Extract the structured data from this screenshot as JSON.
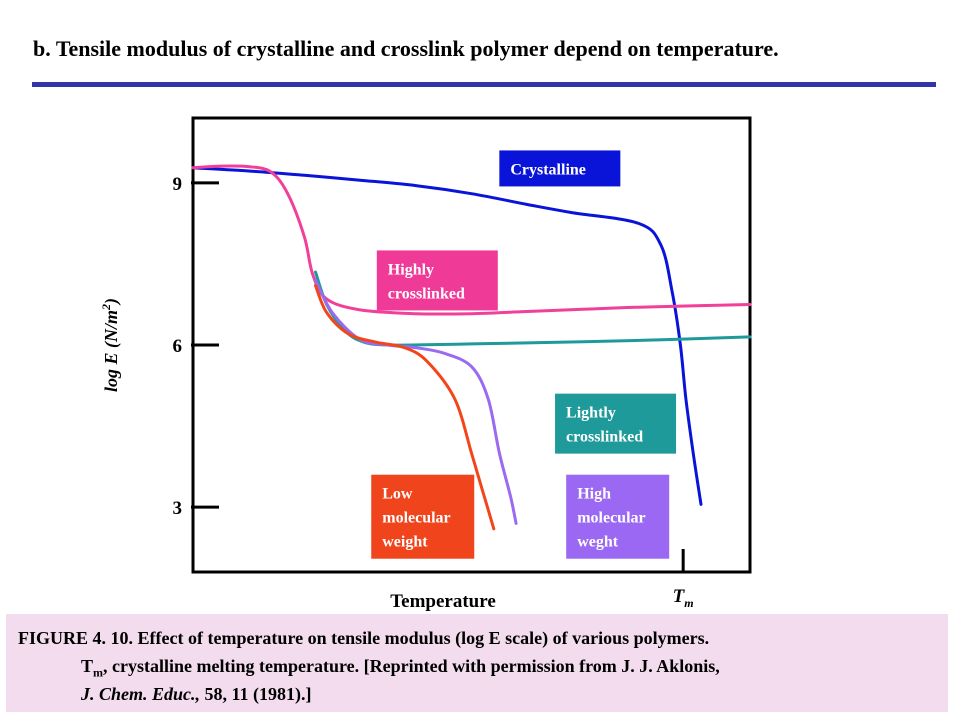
{
  "slide": {
    "title": "b. Tensile modulus of crystalline and crosslink polymer depend on temperature."
  },
  "chart_data": {
    "type": "line",
    "xlabel": "Temperature",
    "ylabel_main": "log E (N/m",
    "ylabel_sup": "2",
    "ylabel_close": ")",
    "x_marker": {
      "label_main": "T",
      "label_sub": "m",
      "x": 0.88
    },
    "xlim": [
      0,
      1
    ],
    "ylim": [
      1.8,
      10.2
    ],
    "yticks": [
      3,
      6,
      9
    ],
    "grid": false,
    "legend": "inline labels",
    "series": [
      {
        "name": "Crystalline",
        "color": "#0a14d8",
        "label_color": "#0a14d8",
        "points": [
          [
            0.0,
            9.28
          ],
          [
            0.1,
            9.22
          ],
          [
            0.2,
            9.14
          ],
          [
            0.3,
            9.05
          ],
          [
            0.4,
            8.95
          ],
          [
            0.5,
            8.8
          ],
          [
            0.6,
            8.6
          ],
          [
            0.68,
            8.45
          ],
          [
            0.8,
            8.25
          ],
          [
            0.84,
            7.85
          ],
          [
            0.86,
            7.0
          ],
          [
            0.875,
            6.0
          ],
          [
            0.885,
            5.0
          ],
          [
            0.898,
            4.0
          ],
          [
            0.912,
            3.05
          ]
        ]
      },
      {
        "name": "Highly crosslinked",
        "color": "#f0409a",
        "label_color": "#f03a98",
        "points": [
          [
            0.0,
            9.28
          ],
          [
            0.05,
            9.31
          ],
          [
            0.1,
            9.3
          ],
          [
            0.14,
            9.2
          ],
          [
            0.17,
            8.8
          ],
          [
            0.2,
            8.0
          ],
          [
            0.215,
            7.3
          ],
          [
            0.24,
            6.85
          ],
          [
            0.3,
            6.65
          ],
          [
            0.4,
            6.58
          ],
          [
            0.5,
            6.58
          ],
          [
            0.6,
            6.62
          ],
          [
            0.7,
            6.66
          ],
          [
            0.8,
            6.7
          ],
          [
            1.0,
            6.75
          ]
        ]
      },
      {
        "name": "Lightly crosslinked",
        "color": "#1e9a9a",
        "label_color": "#1e9a9a",
        "points": [
          [
            0.22,
            7.35
          ],
          [
            0.24,
            6.75
          ],
          [
            0.27,
            6.3
          ],
          [
            0.3,
            6.08
          ],
          [
            0.35,
            6.0
          ],
          [
            0.5,
            6.02
          ],
          [
            0.7,
            6.06
          ],
          [
            0.85,
            6.1
          ],
          [
            1.0,
            6.15
          ]
        ]
      },
      {
        "name": "High molecular weght",
        "color": "#9a6af0",
        "label_color": "#9a68f2",
        "points": [
          [
            0.22,
            7.2
          ],
          [
            0.25,
            6.6
          ],
          [
            0.3,
            6.1
          ],
          [
            0.35,
            6.0
          ],
          [
            0.4,
            5.95
          ],
          [
            0.45,
            5.85
          ],
          [
            0.5,
            5.6
          ],
          [
            0.53,
            5.0
          ],
          [
            0.55,
            4.0
          ],
          [
            0.57,
            3.2
          ],
          [
            0.58,
            2.7
          ]
        ]
      },
      {
        "name": "Low molecular weight",
        "color": "#f2461a",
        "label_color": "#f0441c",
        "points": [
          [
            0.22,
            7.1
          ],
          [
            0.24,
            6.6
          ],
          [
            0.28,
            6.2
          ],
          [
            0.33,
            6.05
          ],
          [
            0.38,
            5.95
          ],
          [
            0.42,
            5.7
          ],
          [
            0.47,
            5.0
          ],
          [
            0.5,
            4.0
          ],
          [
            0.52,
            3.3
          ],
          [
            0.54,
            2.6
          ]
        ]
      }
    ],
    "labels": [
      {
        "series": "Crystalline",
        "lines": [
          "Crystalline"
        ],
        "x": 0.55,
        "y": 9.6
      },
      {
        "series": "Highly crosslinked",
        "lines": [
          "Highly",
          "crosslinked"
        ],
        "x": 0.33,
        "y": 7.75
      },
      {
        "series": "Lightly crosslinked",
        "lines": [
          "Lightly",
          "crosslinked"
        ],
        "x": 0.65,
        "y": 5.1
      },
      {
        "series": "Low molecular weight",
        "lines": [
          "Low",
          "molecular",
          "weight"
        ],
        "x": 0.32,
        "y": 3.6
      },
      {
        "series": "High molecular weght",
        "lines": [
          "High",
          "molecular",
          "weght"
        ],
        "x": 0.67,
        "y": 3.6
      }
    ]
  },
  "caption": {
    "line1": "FIGURE 4. 10. Effect of temperature on tensile modulus (log E scale) of various polymers.",
    "line2_main": "T",
    "line2_sub": "m",
    "line2_rest": ", crystalline melting temperature. [Reprinted with permission from J. J. Aklonis,",
    "line3_italic": "J. Chem. Educ.,",
    "line3_rest": " 58, 11 (1981).]"
  }
}
